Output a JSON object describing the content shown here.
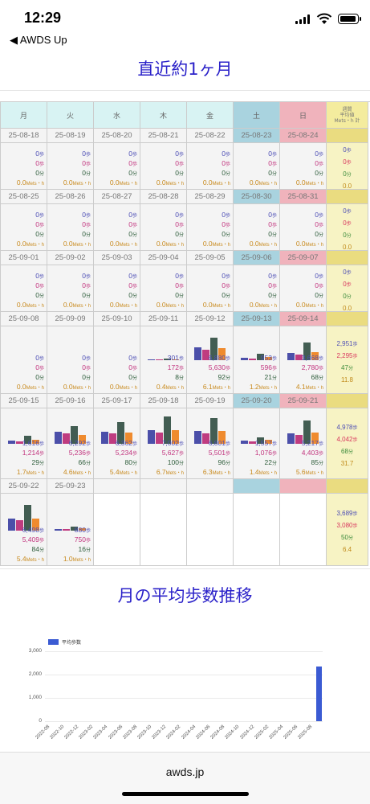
{
  "status": {
    "time": "12:29",
    "back_label": "◀ AWDS Up"
  },
  "section1_title": "直近約1ヶ月",
  "section2_title": "月の平均歩数推移",
  "headers": [
    "月",
    "火",
    "水",
    "木",
    "金",
    "土",
    "日"
  ],
  "weekly_header": [
    "週間",
    "平均値",
    "Mets・h 計"
  ],
  "units": {
    "steps": "歩",
    "mins": "分",
    "mets": "Mets・h"
  },
  "weeks": [
    {
      "dates": [
        "25-08-18",
        "25-08-19",
        "25-08-20",
        "25-08-21",
        "25-08-22",
        "25-08-23",
        "25-08-24"
      ],
      "days": [
        {
          "s1": "0",
          "s2": "0",
          "m": "0",
          "e": "0.0"
        },
        {
          "s1": "0",
          "s2": "0",
          "m": "0",
          "e": "0.0"
        },
        {
          "s1": "0",
          "s2": "0",
          "m": "0",
          "e": "0.0"
        },
        {
          "s1": "0",
          "s2": "0",
          "m": "0",
          "e": "0.0"
        },
        {
          "s1": "0",
          "s2": "0",
          "m": "0",
          "e": "0.0"
        },
        {
          "s1": "0",
          "s2": "0",
          "m": "0",
          "e": "0.0"
        },
        {
          "s1": "0",
          "s2": "0",
          "m": "0",
          "e": "0.0"
        }
      ],
      "weekly": {
        "s1": "0",
        "s2": "0",
        "m": "0",
        "e": "0.0"
      }
    },
    {
      "dates": [
        "25-08-25",
        "25-08-26",
        "25-08-27",
        "25-08-28",
        "25-08-29",
        "25-08-30",
        "25-08-31"
      ],
      "days": [
        {
          "s1": "0",
          "s2": "0",
          "m": "0",
          "e": "0.0"
        },
        {
          "s1": "0",
          "s2": "0",
          "m": "0",
          "e": "0.0"
        },
        {
          "s1": "0",
          "s2": "0",
          "m": "0",
          "e": "0.0"
        },
        {
          "s1": "0",
          "s2": "0",
          "m": "0",
          "e": "0.0"
        },
        {
          "s1": "0",
          "s2": "0",
          "m": "0",
          "e": "0.0"
        },
        {
          "s1": "0",
          "s2": "0",
          "m": "0",
          "e": "0.0"
        },
        {
          "s1": "0",
          "s2": "0",
          "m": "0",
          "e": "0.0"
        }
      ],
      "weekly": {
        "s1": "0",
        "s2": "0",
        "m": "0",
        "e": "0.0"
      }
    },
    {
      "dates": [
        "25-09-01",
        "25-09-02",
        "25-09-03",
        "25-09-04",
        "25-09-05",
        "25-09-06",
        "25-09-07"
      ],
      "days": [
        {
          "s1": "0",
          "s2": "0",
          "m": "0",
          "e": "0.0"
        },
        {
          "s1": "0",
          "s2": "0",
          "m": "0",
          "e": "0.0"
        },
        {
          "s1": "0",
          "s2": "0",
          "m": "0",
          "e": "0.0"
        },
        {
          "s1": "0",
          "s2": "0",
          "m": "0",
          "e": "0.0"
        },
        {
          "s1": "0",
          "s2": "0",
          "m": "0",
          "e": "0.0"
        },
        {
          "s1": "0",
          "s2": "0",
          "m": "0",
          "e": "0.0"
        },
        {
          "s1": "0",
          "s2": "0",
          "m": "0",
          "e": "0.0"
        }
      ],
      "weekly": {
        "s1": "0",
        "s2": "0",
        "m": "0",
        "e": "0.0"
      }
    },
    {
      "dates": [
        "25-09-08",
        "25-09-09",
        "25-09-10",
        "25-09-11",
        "25-09-12",
        "25-09-13",
        "25-09-14"
      ],
      "days": [
        {
          "s1": "0",
          "s2": "0",
          "m": "0",
          "e": "0.0"
        },
        {
          "s1": "0",
          "s2": "0",
          "m": "0",
          "e": "0.0"
        },
        {
          "s1": "0",
          "s2": "0",
          "m": "0",
          "e": "0.0"
        },
        {
          "s1": "301",
          "s2": "172",
          "m": "8",
          "e": "0.4",
          "b": [
            1,
            1,
            2,
            1
          ]
        },
        {
          "s1": "6,880",
          "s2": "5,630",
          "m": "92",
          "e": "6.1",
          "b": [
            16,
            13,
            28,
            15
          ]
        },
        {
          "s1": "953",
          "s2": "596",
          "m": "21",
          "e": "1.2",
          "b": [
            3,
            2,
            8,
            4
          ]
        },
        {
          "s1": "3,668",
          "s2": "2,780",
          "m": "68",
          "e": "4.1",
          "b": [
            9,
            7,
            22,
            10
          ]
        }
      ],
      "weekly": {
        "s1": "2,951",
        "s2": "2,295",
        "m": "47",
        "e": "11.8"
      }
    },
    {
      "dates": [
        "25-09-15",
        "25-09-16",
        "25-09-17",
        "25-09-18",
        "25-09-19",
        "25-09-20",
        "25-09-21"
      ],
      "days": [
        {
          "s1": "1,616",
          "s2": "1,214",
          "m": "29",
          "e": "1.7",
          "b": [
            4,
            3,
            10,
            5
          ]
        },
        {
          "s1": "6,292",
          "s2": "5,236",
          "m": "66",
          "e": "4.6",
          "b": [
            15,
            13,
            22,
            11
          ]
        },
        {
          "s1": "6,362",
          "s2": "5,234",
          "m": "80",
          "e": "5.4",
          "b": [
            15,
            13,
            27,
            14
          ]
        },
        {
          "s1": "7,002",
          "s2": "5,627",
          "m": "100",
          "e": "6.7",
          "b": [
            17,
            14,
            34,
            17
          ]
        },
        {
          "s1": "6,801",
          "s2": "5,501",
          "m": "96",
          "e": "6.3",
          "b": [
            16,
            13,
            32,
            16
          ]
        },
        {
          "s1": "1,557",
          "s2": "1,076",
          "m": "22",
          "e": "1.4",
          "b": [
            4,
            3,
            8,
            5
          ]
        },
        {
          "s1": "5,217",
          "s2": "4,403",
          "m": "85",
          "e": "5.6",
          "b": [
            13,
            11,
            29,
            14
          ]
        }
      ],
      "weekly": {
        "s1": "4,978",
        "s2": "4,042",
        "m": "68",
        "e": "31.7"
      }
    },
    {
      "dates": [
        "25-09-22",
        "25-09-23",
        "",
        "",
        "",
        "",
        ""
      ],
      "days": [
        {
          "s1": "6,498",
          "s2": "5,409",
          "m": "84",
          "e": "5.4",
          "b": [
            15,
            13,
            32,
            15
          ]
        },
        {
          "s1": "880",
          "s2": "750",
          "m": "16",
          "e": "1.0",
          "b": [
            2,
            2,
            5,
            3
          ]
        },
        null,
        null,
        null,
        null,
        null
      ],
      "weekly": {
        "s1": "3,689",
        "s2": "3,080",
        "m": "50",
        "e": "6.4"
      }
    }
  ],
  "chart_data": {
    "type": "bar",
    "legend": "平均歩数",
    "ylim": [
      0,
      3000
    ],
    "yticks": [
      "3,000",
      "2,000",
      "1,000",
      "0"
    ],
    "xticks": [
      "2022-08",
      "2022-10",
      "2022-12",
      "2023-02",
      "2023-04",
      "2023-06",
      "2023-08",
      "2023-10",
      "2023-12",
      "2024-02",
      "2024-04",
      "2024-06",
      "2024-08",
      "2024-10",
      "2024-12",
      "2025-02",
      "2025-04",
      "2025-06",
      "2025-08"
    ],
    "categories": [
      "2022-08",
      "2022-09",
      "2022-10",
      "2022-11",
      "2022-12",
      "2023-01",
      "2023-02",
      "2023-03",
      "2023-04",
      "2023-05",
      "2023-06",
      "2023-07",
      "2023-08",
      "2023-09",
      "2023-10",
      "2023-11",
      "2023-12",
      "2024-01",
      "2024-02",
      "2024-03",
      "2024-04",
      "2024-05",
      "2024-06",
      "2024-07",
      "2024-08",
      "2024-09",
      "2024-10",
      "2024-11",
      "2024-12",
      "2025-01",
      "2025-02",
      "2025-03",
      "2025-04",
      "2025-05",
      "2025-06",
      "2025-07",
      "2025-08",
      "2025-09"
    ],
    "values": [
      0,
      0,
      0,
      0,
      0,
      0,
      0,
      0,
      0,
      0,
      0,
      0,
      0,
      0,
      0,
      0,
      0,
      0,
      0,
      0,
      0,
      0,
      0,
      0,
      0,
      0,
      0,
      0,
      0,
      0,
      0,
      0,
      0,
      0,
      0,
      0,
      0,
      2350
    ],
    "bar_color": "#3b5bd3"
  },
  "footer": "awds.jp"
}
